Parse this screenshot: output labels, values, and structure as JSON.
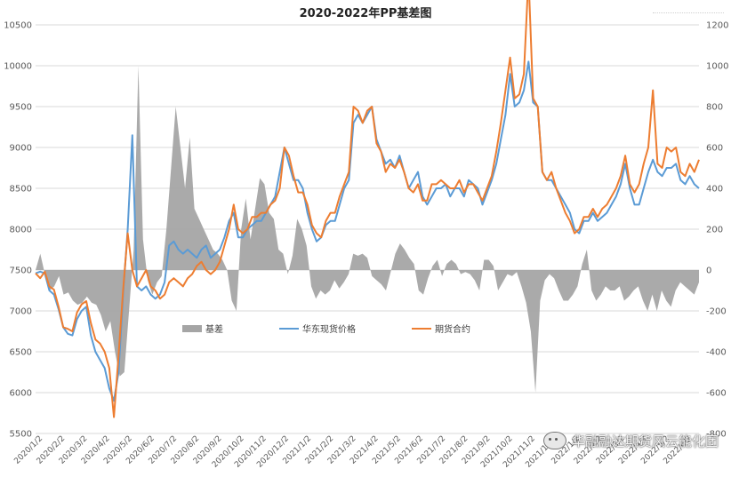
{
  "title": "2020-2022年PP基差图",
  "watermark": "华融融达期货风云能化团",
  "chart_data": {
    "type": "line",
    "title": "2020-2022年PP基差图",
    "left_axis": {
      "min": 5500,
      "max": 10500,
      "ticks": [
        5500,
        6000,
        6500,
        7000,
        7500,
        8000,
        8500,
        9000,
        9500,
        10000,
        10500
      ]
    },
    "right_axis": {
      "min": -800,
      "max": 1200,
      "ticks": [
        -800,
        -600,
        -400,
        -200,
        0,
        200,
        400,
        600,
        800,
        1000,
        1200
      ]
    },
    "x_labels": [
      "2020/1/2",
      "2020/2/2",
      "2020/3/2",
      "2020/4/2",
      "2020/5/2",
      "2020/6/2",
      "2020/7/2",
      "2020/8/2",
      "2020/9/2",
      "2020/10/2",
      "2020/11/2",
      "2020/12/2",
      "2021/1/2",
      "2021/2/2",
      "2021/3/2",
      "2021/4/2",
      "2021/5/2",
      "2021/6/2",
      "2021/7/2",
      "2021/8/2",
      "2021/9/2",
      "2021/10/2",
      "2021/11/2",
      "2021/12/2",
      "2022/1/2",
      "2022/2/2",
      "2022/3/2",
      "2022/4/2",
      "2022/5/2",
      "2022/6/2"
    ],
    "grid": true,
    "legend_position": "bottom-left inside",
    "series": [
      {
        "name": "基差",
        "kind": "area",
        "axis": "right",
        "color": "#a5a5a5",
        "values": [
          0,
          80,
          -20,
          -100,
          -80,
          -30,
          -120,
          -110,
          -150,
          -170,
          -160,
          -130,
          -160,
          -170,
          -220,
          -300,
          -250,
          -400,
          -520,
          -500,
          -200,
          100,
          1000,
          150,
          -50,
          -120,
          -60,
          -30,
          200,
          500,
          800,
          600,
          400,
          650,
          300,
          250,
          200,
          150,
          100,
          80,
          50,
          0,
          -150,
          -200,
          200,
          350,
          150,
          300,
          450,
          420,
          280,
          250,
          100,
          80,
          -20,
          70,
          250,
          200,
          120,
          -80,
          -140,
          -100,
          -120,
          -100,
          -50,
          -90,
          -60,
          -20,
          80,
          70,
          80,
          60,
          -30,
          -50,
          -70,
          -100,
          -10,
          80,
          130,
          100,
          60,
          30,
          -100,
          -120,
          -40,
          20,
          50,
          -30,
          30,
          50,
          30,
          -20,
          -10,
          -20,
          -50,
          -100,
          50,
          50,
          20,
          -100,
          -60,
          -20,
          -30,
          -10,
          -80,
          -160,
          -300,
          -600,
          -150,
          -50,
          -20,
          -40,
          -100,
          -150,
          -150,
          -120,
          -80,
          30,
          100,
          -100,
          -150,
          -120,
          -80,
          -100,
          -100,
          -80,
          -150,
          -130,
          -100,
          -80,
          -150,
          -200,
          -120,
          -200,
          -100,
          -150,
          -180,
          -100,
          -60,
          -80,
          -100,
          -120,
          -60
        ]
      },
      {
        "name": "华东现货价格",
        "kind": "line",
        "axis": "left",
        "color": "#5b9bd5",
        "values": [
          7460,
          7480,
          7460,
          7250,
          7200,
          7020,
          6800,
          6720,
          6700,
          6900,
          7000,
          7050,
          6700,
          6500,
          6400,
          6300,
          6050,
          5900,
          6250,
          7200,
          8000,
          9150,
          7300,
          7250,
          7300,
          7200,
          7150,
          7200,
          7350,
          7800,
          7850,
          7750,
          7700,
          7750,
          7700,
          7650,
          7750,
          7800,
          7650,
          7700,
          7750,
          7900,
          8100,
          8200,
          7900,
          7900,
          8000,
          8050,
          8100,
          8100,
          8200,
          8300,
          8400,
          8700,
          9000,
          8800,
          8600,
          8600,
          8500,
          8200,
          8000,
          7850,
          7900,
          8050,
          8100,
          8100,
          8300,
          8500,
          8600,
          9300,
          9400,
          9300,
          9400,
          9500,
          9100,
          8950,
          8800,
          8850,
          8750,
          8900,
          8700,
          8500,
          8600,
          8700,
          8400,
          8300,
          8400,
          8500,
          8500,
          8550,
          8400,
          8500,
          8500,
          8400,
          8600,
          8550,
          8500,
          8300,
          8450,
          8600,
          8800,
          9100,
          9400,
          9900,
          9500,
          9550,
          9700,
          10050,
          9550,
          9500,
          8700,
          8600,
          8600,
          8500,
          8400,
          8300,
          8200,
          8000,
          7950,
          8100,
          8100,
          8200,
          8100,
          8150,
          8200,
          8300,
          8400,
          8550,
          8800,
          8500,
          8300,
          8300,
          8500,
          8700,
          8850,
          8700,
          8650,
          8750,
          8750,
          8800,
          8600,
          8550,
          8650,
          8550,
          8500
        ]
      },
      {
        "name": "期货合约",
        "kind": "line",
        "axis": "left",
        "color": "#ed7d31",
        "values": [
          7460,
          7400,
          7480,
          7300,
          7260,
          7050,
          6800,
          6780,
          6750,
          6980,
          7080,
          7120,
          6850,
          6650,
          6600,
          6500,
          6300,
          5700,
          6450,
          7250,
          7950,
          7500,
          7300,
          7400,
          7500,
          7300,
          7250,
          7150,
          7200,
          7350,
          7400,
          7350,
          7300,
          7400,
          7450,
          7550,
          7600,
          7500,
          7450,
          7500,
          7600,
          7800,
          8000,
          8300,
          8000,
          7950,
          8000,
          8150,
          8150,
          8200,
          8200,
          8300,
          8350,
          8500,
          9000,
          8900,
          8650,
          8450,
          8450,
          8300,
          8050,
          7950,
          7900,
          8100,
          8200,
          8200,
          8400,
          8550,
          8700,
          9500,
          9450,
          9300,
          9450,
          9500,
          9050,
          8950,
          8700,
          8800,
          8750,
          8850,
          8700,
          8500,
          8450,
          8550,
          8350,
          8350,
          8550,
          8550,
          8600,
          8550,
          8500,
          8500,
          8600,
          8450,
          8550,
          8550,
          8450,
          8350,
          8500,
          8650,
          8950,
          9300,
          9700,
          10100,
          9600,
          9650,
          9900,
          11100,
          9600,
          9500,
          8700,
          8600,
          8700,
          8500,
          8350,
          8200,
          8100,
          7950,
          8000,
          8150,
          8150,
          8250,
          8150,
          8250,
          8300,
          8400,
          8500,
          8650,
          8900,
          8550,
          8450,
          8550,
          8800,
          9000,
          9700,
          8800,
          8750,
          9000,
          8950,
          9000,
          8700,
          8650,
          8800,
          8700,
          8850
        ]
      }
    ]
  }
}
